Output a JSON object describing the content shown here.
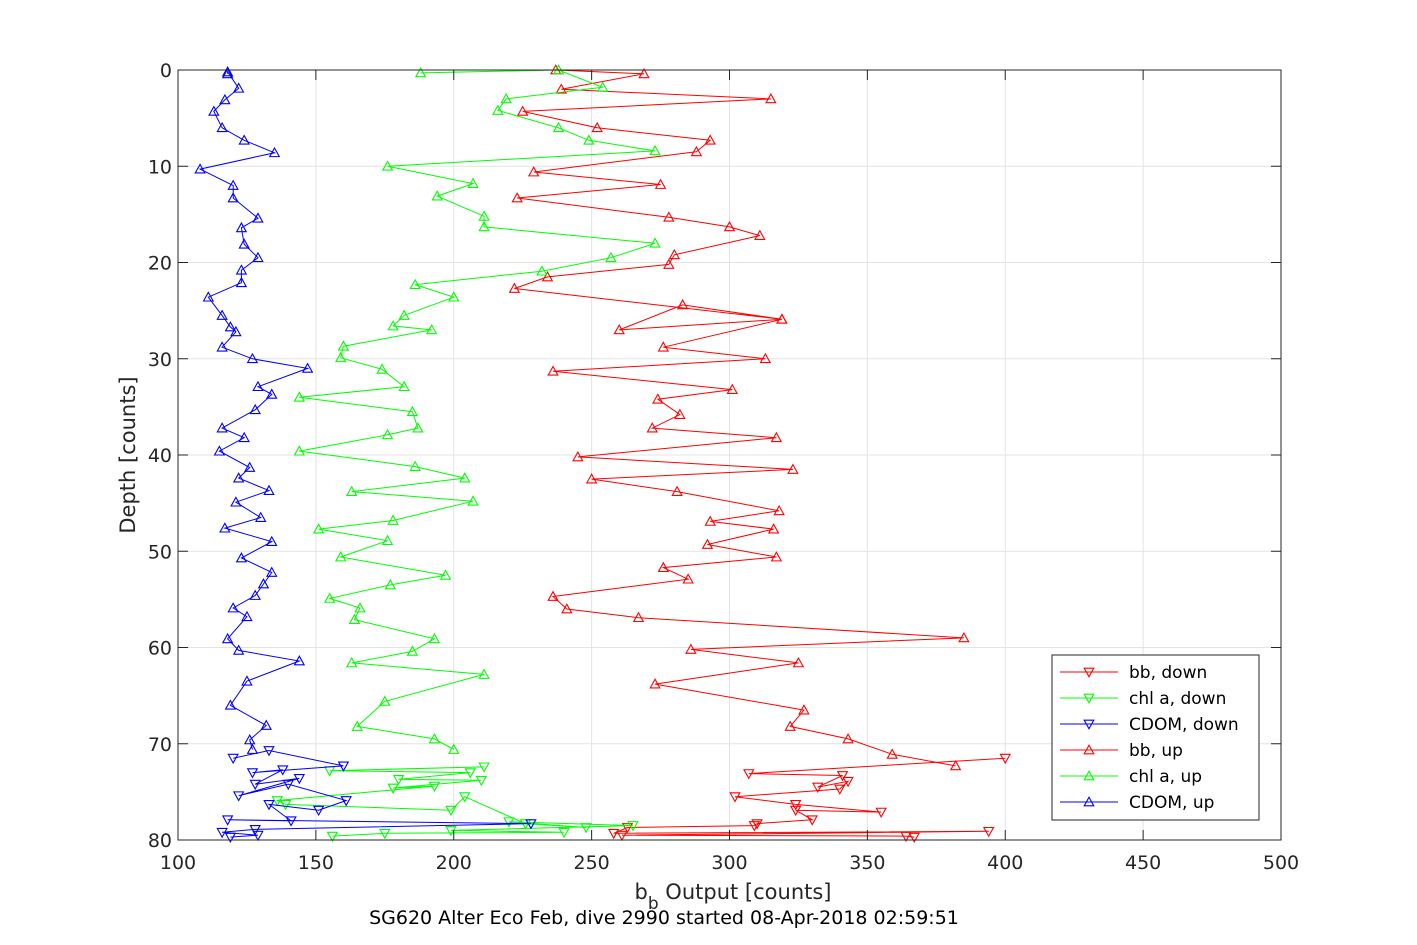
{
  "chart_data": {
    "type": "line",
    "xlabel_main": "b",
    "xlabel_sub": "b",
    "xlabel_rest": " Output [counts]",
    "ylabel": "Depth [counts]",
    "caption": "SG620 Alter Eco Feb, dive 2990 started 08-Apr-2018 02:59:51",
    "xlim": [
      100,
      500
    ],
    "ylim": [
      0,
      80
    ],
    "y_reversed": true,
    "x_ticks": [
      100,
      150,
      200,
      250,
      300,
      350,
      400,
      450,
      500
    ],
    "y_ticks": [
      0,
      10,
      20,
      30,
      40,
      50,
      60,
      70,
      80
    ],
    "grid": true,
    "legend_position": "bottom-right",
    "series": [
      {
        "name": "bb, down",
        "color": "#ff0000",
        "marker": "triangle-down",
        "x": [
          400,
          307,
          341,
          332,
          343,
          340,
          302,
          324,
          355,
          324,
          330,
          310,
          309,
          263,
          258,
          394,
          261,
          364,
          367
        ],
        "y": [
          71.5,
          73.1,
          73.3,
          74.5,
          73.9,
          74.7,
          75.5,
          76.3,
          77.1,
          76.9,
          77.9,
          78.3,
          78.5,
          78.7,
          79.3,
          79.1,
          79.5,
          79.6,
          79.7
        ]
      },
      {
        "name": "chl a, down",
        "color": "#00ff00",
        "marker": "triangle-down",
        "x": [
          211,
          155,
          206,
          180,
          210,
          178,
          193,
          136,
          139,
          199,
          204,
          226,
          248,
          220,
          265,
          199,
          240,
          175,
          156
        ],
        "y": [
          72.4,
          72.8,
          73.0,
          73.7,
          73.8,
          74.6,
          74.4,
          75.9,
          76.3,
          76.9,
          75.5,
          78.3,
          78.7,
          78.1,
          78.5,
          79.0,
          79.2,
          79.3,
          79.6
        ]
      },
      {
        "name": "CDOM, down",
        "color": "#0000ff",
        "marker": "triangle-down",
        "x": [
          120,
          133,
          160,
          127,
          138,
          128,
          144,
          122,
          140,
          161,
          151,
          133,
          141,
          118,
          228,
          128,
          116,
          129,
          119
        ],
        "y": [
          71.5,
          70.7,
          72.3,
          73.0,
          72.7,
          74.2,
          73.6,
          75.4,
          74.2,
          75.9,
          76.9,
          76.3,
          78.0,
          77.9,
          78.3,
          78.9,
          79.2,
          79.5,
          79.7
        ]
      },
      {
        "name": "bb, up",
        "color": "#ff0000",
        "marker": "triangle-up",
        "x": [
          382,
          359,
          343,
          322,
          327,
          273,
          325,
          286,
          385,
          267,
          241,
          236,
          285,
          276,
          317,
          292,
          316,
          293,
          318,
          281,
          250,
          323,
          245,
          317,
          272,
          282,
          274,
          301,
          236,
          313,
          276,
          319,
          260,
          283,
          319,
          222,
          234,
          278,
          280,
          311,
          300,
          278,
          223,
          275,
          229,
          288,
          293,
          252,
          225,
          315,
          239,
          269,
          237
        ],
        "y": [
          72.3,
          71.1,
          69.5,
          68.2,
          66.5,
          63.8,
          61.6,
          60.2,
          59.0,
          56.9,
          56.0,
          54.7,
          52.9,
          51.7,
          50.6,
          49.3,
          47.7,
          46.9,
          45.8,
          43.8,
          42.5,
          41.5,
          40.2,
          38.2,
          37.2,
          35.8,
          34.2,
          33.2,
          31.3,
          30.0,
          28.8,
          25.9,
          27.0,
          24.4,
          25.9,
          22.7,
          21.5,
          20.2,
          19.2,
          17.2,
          16.3,
          15.3,
          13.3,
          11.9,
          10.6,
          8.5,
          7.3,
          6.0,
          4.3,
          3.0,
          2.0,
          0.4,
          0.0
        ]
      },
      {
        "name": "chl a, up",
        "color": "#00ff00",
        "marker": "triangle-up",
        "x": [
          200,
          193,
          165,
          175,
          211,
          163,
          185,
          193,
          164,
          166,
          155,
          177,
          197,
          159,
          176,
          151,
          178,
          207,
          163,
          204,
          186,
          144,
          176,
          187,
          185,
          144,
          182,
          174,
          159,
          160,
          192,
          178,
          182,
          200,
          186,
          232,
          257,
          273,
          211,
          211,
          194,
          207,
          176,
          273,
          249,
          238,
          216,
          219,
          254,
          238,
          188
        ],
        "y": [
          70.6,
          69.5,
          68.2,
          65.6,
          62.8,
          61.6,
          60.4,
          59.1,
          57.1,
          55.9,
          54.9,
          53.5,
          52.5,
          50.6,
          48.9,
          47.7,
          46.8,
          44.8,
          43.8,
          42.4,
          41.2,
          39.6,
          37.9,
          37.2,
          35.5,
          34.0,
          32.9,
          31.1,
          29.9,
          28.7,
          27.0,
          26.6,
          25.5,
          23.6,
          22.3,
          20.9,
          19.5,
          18.0,
          16.3,
          15.2,
          13.1,
          11.8,
          10.0,
          8.4,
          7.3,
          6.0,
          4.2,
          3.0,
          1.8,
          0.0,
          0.3
        ]
      },
      {
        "name": "CDOM, up",
        "color": "#0000ff",
        "marker": "triangle-up",
        "x": [
          127,
          126,
          132,
          119,
          125,
          144,
          122,
          118,
          125,
          120,
          128,
          131,
          134,
          123,
          134,
          117,
          130,
          121,
          133,
          122,
          126,
          115,
          124,
          116,
          128,
          134,
          129,
          147,
          127,
          116,
          121,
          119,
          116,
          111,
          123,
          123,
          129,
          124,
          123,
          129,
          120,
          120,
          108,
          135,
          124,
          116,
          113,
          117,
          122,
          118,
          118
        ],
        "y": [
          70.6,
          69.6,
          68.1,
          66.0,
          63.5,
          61.4,
          60.3,
          59.1,
          56.8,
          55.9,
          54.6,
          53.4,
          52.2,
          50.7,
          49.0,
          47.6,
          46.5,
          44.9,
          43.7,
          42.4,
          41.3,
          39.6,
          38.2,
          37.2,
          35.3,
          33.7,
          32.9,
          31.0,
          30.0,
          28.8,
          27.2,
          26.7,
          25.5,
          23.6,
          22.1,
          20.8,
          19.5,
          18.1,
          16.4,
          15.4,
          13.3,
          12.0,
          10.3,
          8.6,
          7.3,
          6.0,
          4.3,
          3.1,
          1.9,
          0.2,
          0.4
        ]
      }
    ]
  }
}
